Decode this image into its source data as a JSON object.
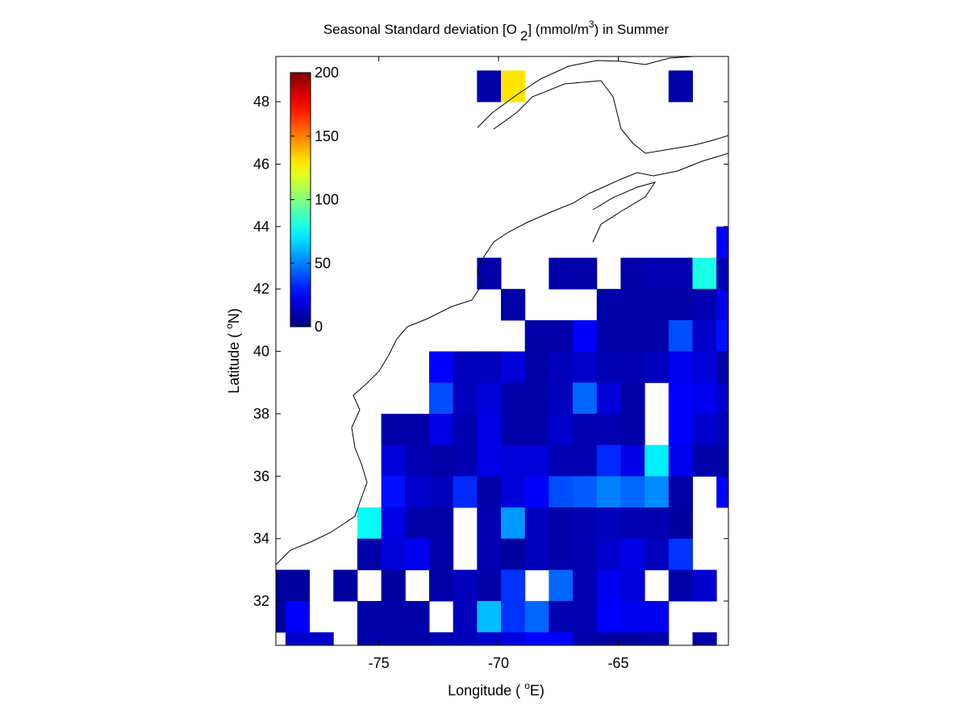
{
  "chart_data": {
    "type": "heatmap",
    "title": [
      "Seasonal Standard deviation [O",
      "2",
      "] (mmol/m",
      "3",
      ") in  Summer"
    ],
    "xlabel": [
      "Longitude (",
      "o",
      "E)"
    ],
    "ylabel": [
      "Latitude (",
      "o",
      "N)"
    ],
    "xlim": [
      -79.3,
      -60.4
    ],
    "ylim": [
      30.58,
      49.45
    ],
    "xticks": [
      -75,
      -70,
      -65
    ],
    "yticks": [
      32,
      34,
      36,
      38,
      40,
      42,
      44,
      46,
      48
    ],
    "colormap": "jet",
    "clim": [
      0,
      200
    ],
    "colorbar_ticks": [
      0,
      50,
      100,
      150,
      200
    ],
    "x": [
      -79.4,
      -78.4,
      -77.4,
      -76.4,
      -75.4,
      -74.4,
      -73.4,
      -72.4,
      -71.4,
      -70.4,
      -69.4,
      -68.4,
      -67.4,
      -66.4,
      -65.4,
      -64.4,
      -63.4,
      -62.4,
      -61.4,
      -60.4
    ],
    "y": [
      48.5,
      47.5,
      46.5,
      45.5,
      44.5,
      43.5,
      42.5,
      41.5,
      40.5,
      39.5,
      38.5,
      37.5,
      36.5,
      35.5,
      34.5,
      33.5,
      32.5,
      31.5,
      30.5
    ],
    "z": [
      [
        null,
        null,
        null,
        null,
        null,
        null,
        null,
        null,
        null,
        8,
        130,
        null,
        null,
        null,
        null,
        null,
        null,
        8,
        null,
        null
      ],
      [
        null,
        null,
        null,
        null,
        null,
        null,
        null,
        null,
        null,
        null,
        null,
        null,
        null,
        null,
        null,
        null,
        null,
        null,
        null,
        null
      ],
      [
        null,
        null,
        null,
        null,
        null,
        null,
        null,
        null,
        null,
        null,
        null,
        null,
        null,
        null,
        null,
        null,
        null,
        null,
        null,
        null
      ],
      [
        null,
        null,
        null,
        null,
        null,
        null,
        null,
        null,
        null,
        null,
        null,
        null,
        null,
        null,
        null,
        null,
        null,
        null,
        null,
        null
      ],
      [
        null,
        null,
        null,
        null,
        null,
        null,
        null,
        null,
        null,
        null,
        null,
        null,
        null,
        null,
        null,
        null,
        null,
        null,
        null,
        null
      ],
      [
        null,
        null,
        null,
        null,
        null,
        null,
        null,
        null,
        null,
        null,
        null,
        null,
        null,
        null,
        null,
        null,
        null,
        null,
        null,
        25
      ],
      [
        null,
        null,
        null,
        null,
        null,
        null,
        null,
        null,
        null,
        8,
        null,
        null,
        8,
        8,
        null,
        8,
        10,
        10,
        80,
        10
      ],
      [
        null,
        null,
        null,
        null,
        null,
        null,
        null,
        null,
        null,
        null,
        8,
        null,
        null,
        null,
        8,
        8,
        8,
        8,
        10,
        20
      ],
      [
        null,
        null,
        null,
        null,
        null,
        null,
        null,
        null,
        null,
        null,
        null,
        8,
        8,
        25,
        8,
        8,
        8,
        40,
        15,
        28
      ],
      [
        null,
        null,
        null,
        null,
        null,
        null,
        null,
        25,
        12,
        12,
        18,
        8,
        12,
        15,
        10,
        10,
        12,
        22,
        18,
        8
      ],
      [
        null,
        null,
        null,
        null,
        null,
        null,
        null,
        40,
        12,
        18,
        8,
        8,
        12,
        45,
        18,
        8,
        null,
        25,
        22,
        15
      ],
      [
        null,
        null,
        null,
        null,
        null,
        8,
        8,
        20,
        10,
        20,
        8,
        8,
        15,
        10,
        10,
        8,
        null,
        25,
        15,
        12
      ],
      [
        null,
        null,
        null,
        null,
        null,
        18,
        10,
        8,
        10,
        20,
        18,
        18,
        10,
        10,
        33,
        20,
        72,
        22,
        8,
        8
      ],
      [
        null,
        null,
        null,
        null,
        null,
        28,
        15,
        12,
        33,
        8,
        18,
        25,
        40,
        43,
        50,
        45,
        52,
        8,
        null,
        25
      ],
      [
        null,
        null,
        null,
        null,
        75,
        20,
        8,
        8,
        null,
        10,
        55,
        12,
        8,
        10,
        12,
        10,
        10,
        6,
        null,
        null
      ],
      [
        null,
        null,
        null,
        null,
        8,
        18,
        22,
        8,
        null,
        10,
        6,
        12,
        8,
        10,
        15,
        20,
        12,
        35,
        null,
        null
      ],
      [
        6,
        6,
        null,
        6,
        null,
        6,
        null,
        8,
        12,
        8,
        35,
        null,
        45,
        10,
        22,
        18,
        null,
        8,
        15,
        null
      ],
      [
        6,
        25,
        null,
        null,
        8,
        8,
        8,
        null,
        12,
        62,
        35,
        45,
        10,
        10,
        25,
        22,
        22,
        null,
        null,
        null
      ],
      [
        null,
        15,
        15,
        null,
        8,
        8,
        8,
        10,
        12,
        15,
        18,
        25,
        25,
        8,
        6,
        6,
        8,
        null,
        8,
        null
      ]
    ]
  }
}
